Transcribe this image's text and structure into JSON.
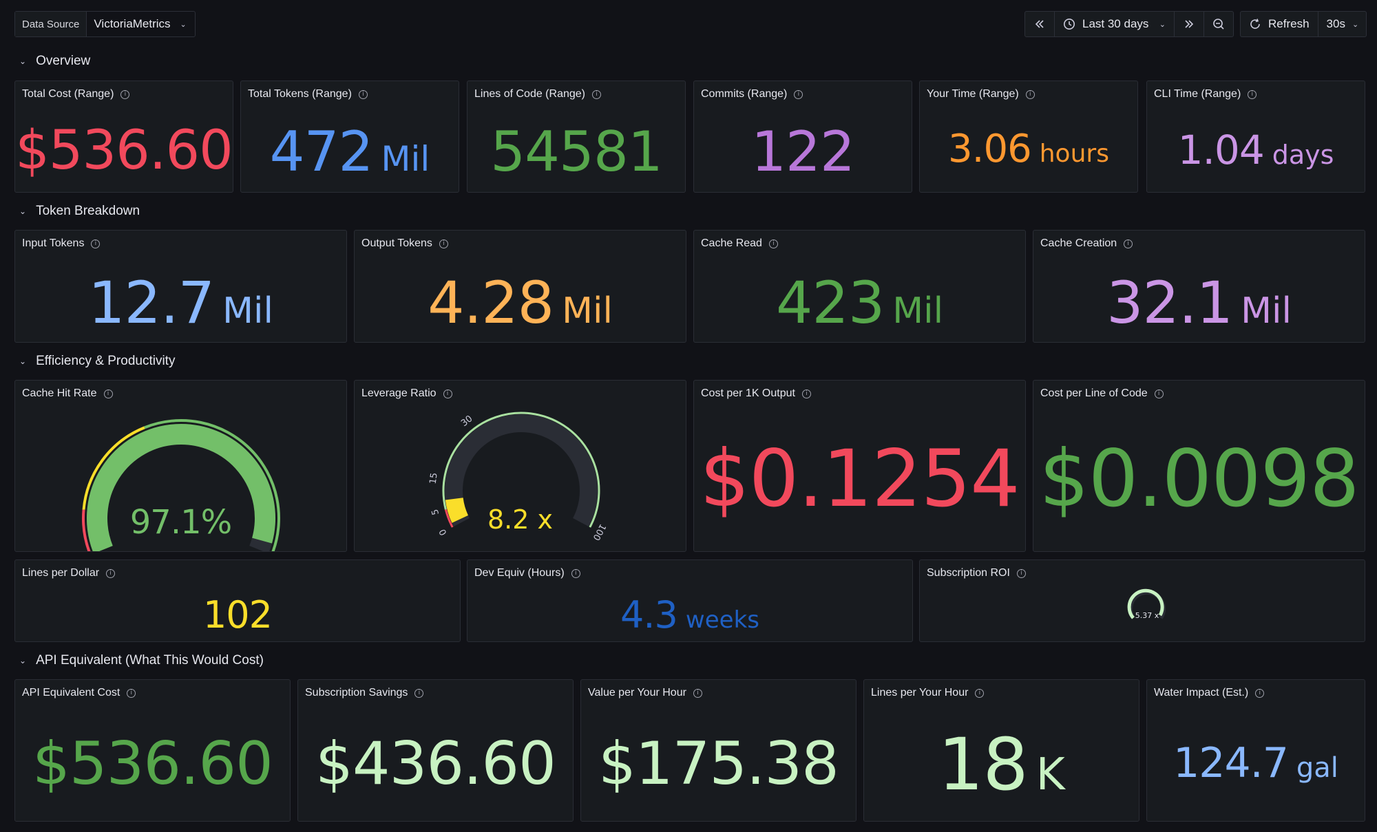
{
  "toolbar": {
    "datasource_label": "Data Source",
    "datasource_value": "VictoriaMetrics",
    "time_range": "Last 30 days",
    "refresh_label": "Refresh",
    "refresh_interval": "30s"
  },
  "rows": {
    "overview": "Overview",
    "token_breakdown": "Token Breakdown",
    "efficiency": "Efficiency & Productivity",
    "api_equivalent": "API Equivalent (What This Would Cost)"
  },
  "panels": {
    "total_cost": {
      "title": "Total Cost (Range)",
      "value": "$536.60",
      "color": "#f2495c"
    },
    "total_tokens": {
      "title": "Total Tokens (Range)",
      "value": "472",
      "unit": "Mil",
      "color": "#5794f2"
    },
    "lines_of_code": {
      "title": "Lines of Code (Range)",
      "value": "54581",
      "color": "#56a64b"
    },
    "commits": {
      "title": "Commits (Range)",
      "value": "122",
      "color": "#b877d9"
    },
    "your_time": {
      "title": "Your Time (Range)",
      "value": "3.06",
      "unit": "hours",
      "color": "#ff9830"
    },
    "cli_time": {
      "title": "CLI Time (Range)",
      "value": "1.04",
      "unit": "days",
      "color": "#ca95e5"
    },
    "input_tokens": {
      "title": "Input Tokens",
      "value": "12.7",
      "unit": "Mil",
      "color": "#8ab8ff"
    },
    "output_tokens": {
      "title": "Output Tokens",
      "value": "4.28",
      "unit": "Mil",
      "color": "#ffb357"
    },
    "cache_read": {
      "title": "Cache Read",
      "value": "423",
      "unit": "Mil",
      "color": "#56a64b"
    },
    "cache_creation": {
      "title": "Cache Creation",
      "value": "32.1",
      "unit": "Mil",
      "color": "#ca95e5"
    },
    "cache_hit_rate": {
      "title": "Cache Hit Rate",
      "value": "97.1%",
      "percent": 97.1,
      "color": "#73bf69"
    },
    "leverage_ratio": {
      "title": "Leverage Ratio",
      "value": "8.2 x",
      "ratio": 8.2,
      "ticks": [
        "0",
        "5",
        "15",
        "30",
        "100"
      ],
      "color": "#fade2a"
    },
    "cost_per_1k_output": {
      "title": "Cost per 1K Output",
      "value": "$0.1254",
      "color": "#f2495c"
    },
    "cost_per_line": {
      "title": "Cost per Line of Code",
      "value": "$0.0098",
      "color": "#56a64b"
    },
    "lines_per_dollar": {
      "title": "Lines per Dollar",
      "value": "102",
      "color": "#fade2a"
    },
    "dev_equiv": {
      "title": "Dev Equiv (Hours)",
      "value": "4.3",
      "unit": "weeks",
      "color": "#1f60c4"
    },
    "subscription_roi": {
      "title": "Subscription ROI",
      "value": "5.37 x",
      "color": "#c8f2c2"
    },
    "api_equiv_cost": {
      "title": "API Equivalent Cost",
      "value": "$536.60",
      "color": "#56a64b"
    },
    "subscription_savings": {
      "title": "Subscription Savings",
      "value": "$436.60",
      "color": "#c8f2c2"
    },
    "value_per_hour": {
      "title": "Value per Your Hour",
      "value": "$175.38",
      "color": "#c8f2c2"
    },
    "lines_per_hour": {
      "title": "Lines per Your Hour",
      "value": "18",
      "unit": "K",
      "color": "#c8f2c2"
    },
    "water_impact": {
      "title": "Water Impact (Est.)",
      "value": "124.7",
      "unit": "gal",
      "color": "#8ab8ff"
    }
  }
}
